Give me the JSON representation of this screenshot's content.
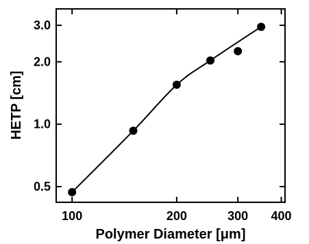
{
  "chart_data": {
    "type": "scatter",
    "title": "",
    "xlabel": "Polymer Diameter [μm]",
    "ylabel": "HETP [cm]",
    "x_scale": "log",
    "y_scale": "log",
    "xlim": [
      90,
      410
    ],
    "ylim": [
      0.42,
      3.6
    ],
    "x_ticks": [
      100,
      200,
      300,
      400
    ],
    "x_tick_labels": [
      "100",
      "200",
      "300",
      "400"
    ],
    "y_ticks": [
      0.5,
      1.0,
      2.0,
      3.0
    ],
    "y_tick_labels": [
      "0.5",
      "1.0",
      "2.0",
      "3.0"
    ],
    "grid": false,
    "series": [
      {
        "points": [
          {
            "x": 100,
            "y": 0.47
          },
          {
            "x": 150,
            "y": 0.93
          },
          {
            "x": 200,
            "y": 1.55
          },
          {
            "x": 250,
            "y": 2.03
          },
          {
            "x": 300,
            "y": 2.25
          },
          {
            "x": 350,
            "y": 2.95
          }
        ],
        "fit_line": [
          {
            "x": 100,
            "y": 0.47
          },
          {
            "x": 150,
            "y": 0.93
          },
          {
            "x": 200,
            "y": 1.55
          },
          {
            "x": 250,
            "y": 2.03
          },
          {
            "x": 350,
            "y": 2.95
          }
        ],
        "color": "#000000"
      }
    ]
  }
}
